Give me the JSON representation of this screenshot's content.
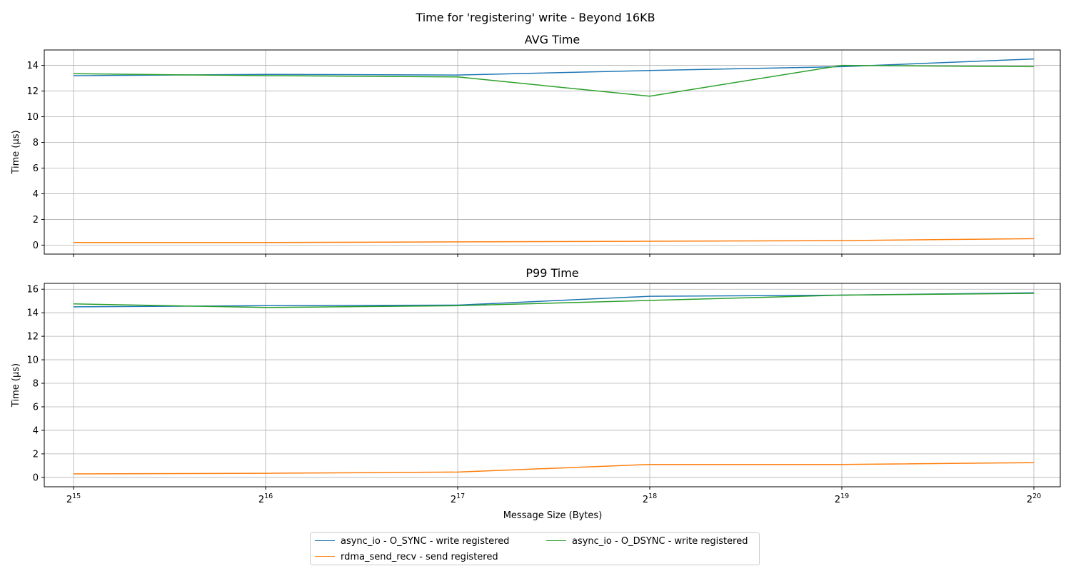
{
  "chart_data": {
    "suptitle": "Time for 'registering' write - Beyond 16KB",
    "type": "line",
    "x_scale": "log2",
    "x": [
      32768,
      65536,
      131072,
      262144,
      524288,
      1048576
    ],
    "x_tick_labels": [
      {
        "base": "2",
        "exp": "15"
      },
      {
        "base": "2",
        "exp": "16"
      },
      {
        "base": "2",
        "exp": "17"
      },
      {
        "base": "2",
        "exp": "18"
      },
      {
        "base": "2",
        "exp": "19"
      },
      {
        "base": "2",
        "exp": "20"
      }
    ],
    "xlabel": "Message Size (Bytes)",
    "grid": true,
    "legend_position": "bottom-center",
    "series_styles": [
      {
        "name": "async_io - O_SYNC - write registered",
        "color": "#1f77b4"
      },
      {
        "name": "rdma_send_recv - send registered",
        "color": "#ff7f0e"
      },
      {
        "name": "async_io - O_DSYNC - write registered",
        "color": "#2ca02c"
      }
    ],
    "subplots": [
      {
        "title": "AVG Time",
        "ylabel": "Time (µs)",
        "ylim": [
          -0.7,
          15.2
        ],
        "yticks": [
          0,
          2,
          4,
          6,
          8,
          10,
          12,
          14
        ],
        "series": [
          {
            "name": "async_io - O_SYNC - write registered",
            "values": [
              13.2,
              13.3,
              13.25,
              13.6,
              13.9,
              14.5
            ]
          },
          {
            "name": "rdma_send_recv - send registered",
            "values": [
              0.2,
              0.2,
              0.25,
              0.3,
              0.35,
              0.5
            ]
          },
          {
            "name": "async_io - O_DSYNC - write registered",
            "values": [
              13.35,
              13.2,
              13.1,
              11.6,
              14.0,
              13.9
            ]
          }
        ]
      },
      {
        "title": "P99 Time",
        "ylabel": "Time (µs)",
        "ylim": [
          -0.8,
          16.5
        ],
        "yticks": [
          0,
          2,
          4,
          6,
          8,
          10,
          12,
          14,
          16
        ],
        "series": [
          {
            "name": "async_io - O_SYNC - write registered",
            "values": [
              14.5,
              14.6,
              14.65,
              15.4,
              15.5,
              15.7
            ]
          },
          {
            "name": "rdma_send_recv - send registered",
            "values": [
              0.3,
              0.35,
              0.45,
              1.1,
              1.1,
              1.25
            ]
          },
          {
            "name": "async_io - O_DSYNC - write registered",
            "values": [
              14.75,
              14.45,
              14.6,
              15.05,
              15.5,
              15.65
            ]
          }
        ]
      }
    ]
  },
  "legend": {
    "items": [
      {
        "label": "async_io - O_SYNC - write registered",
        "color": "#1f77b4"
      },
      {
        "label": "async_io - O_DSYNC - write registered",
        "color": "#2ca02c"
      },
      {
        "label": "rdma_send_recv - send registered",
        "color": "#ff7f0e"
      }
    ]
  }
}
